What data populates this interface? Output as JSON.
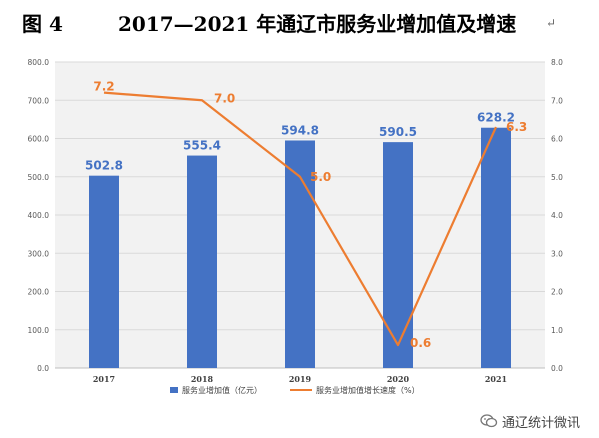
{
  "page": {
    "figure_number": "图 4",
    "title": "2017—2021 年通辽市服务业增加值及增速",
    "trailing_mark": "↵",
    "watermark": "通辽统计微讯",
    "watermark_icon": "wechat-bubble-icon"
  },
  "colors": {
    "bar": "#4472c4",
    "line": "#ed7d31",
    "line_label": "#ed7d31",
    "bar_label": "#4472c4",
    "grid": "#d9d9d9",
    "plot_bg": "#f2f2f2"
  },
  "chart_data": {
    "type": "bar",
    "categories": [
      "2017",
      "2018",
      "2019",
      "2020",
      "2021"
    ],
    "series": [
      {
        "name": "服务业增加值（亿元）",
        "type": "bar",
        "axis": "left",
        "values": [
          502.8,
          555.4,
          594.8,
          590.5,
          628.2
        ],
        "labels": [
          "502.8",
          "555.4",
          "594.8",
          "590.5",
          "628.2"
        ]
      },
      {
        "name": "服务业增加值增长速度（%）",
        "type": "line",
        "axis": "right",
        "values": [
          7.2,
          7.0,
          5.0,
          0.6,
          6.3
        ],
        "labels": [
          "7.2",
          "7.0",
          "5.0",
          "0.6",
          "6.3"
        ]
      }
    ],
    "y_left": {
      "lim": [
        0,
        800
      ],
      "ticks": [
        "0.0",
        "100.0",
        "200.0",
        "300.0",
        "400.0",
        "500.0",
        "600.0",
        "700.0",
        "800.0"
      ]
    },
    "y_right": {
      "lim": [
        0,
        8
      ],
      "ticks": [
        "0.0",
        "1.0",
        "2.0",
        "3.0",
        "4.0",
        "5.0",
        "6.0",
        "7.0",
        "8.0"
      ]
    },
    "grid": true,
    "legend": "bottom"
  }
}
